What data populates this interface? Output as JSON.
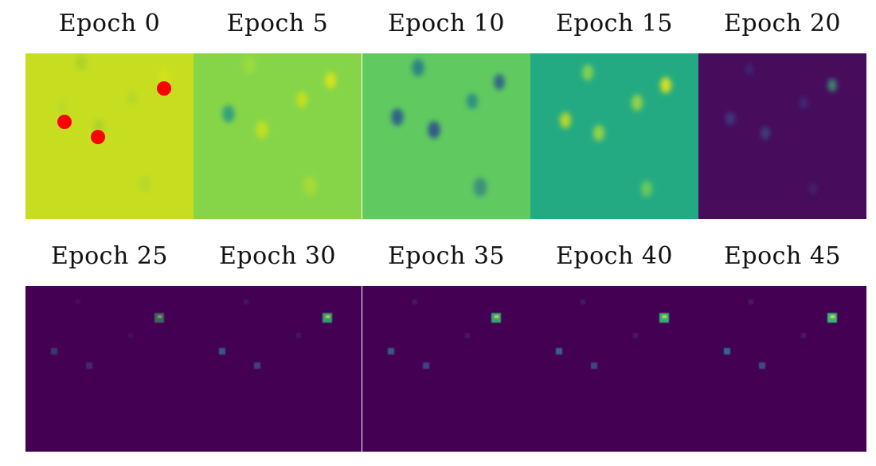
{
  "figure": {
    "colormap": "viridis",
    "marker_color": "#ff0000",
    "rows": [
      {
        "panels": [
          {
            "title": "Epoch 0",
            "background": "#c7de20",
            "markers": true
          },
          {
            "title": "Epoch 5",
            "background": "#86d549"
          },
          {
            "title": "Epoch 10",
            "background": "#60ca60"
          },
          {
            "title": "Epoch 15",
            "background": "#24aa83"
          },
          {
            "title": "Epoch 20",
            "background": "#470c5c"
          }
        ]
      },
      {
        "panels": [
          {
            "title": "Epoch 25",
            "background": "#440154"
          },
          {
            "title": "Epoch 30",
            "background": "#440154"
          },
          {
            "title": "Epoch 35",
            "background": "#440154"
          },
          {
            "title": "Epoch 40",
            "background": "#440154"
          },
          {
            "title": "Epoch 45",
            "background": "#440154"
          }
        ]
      }
    ]
  }
}
